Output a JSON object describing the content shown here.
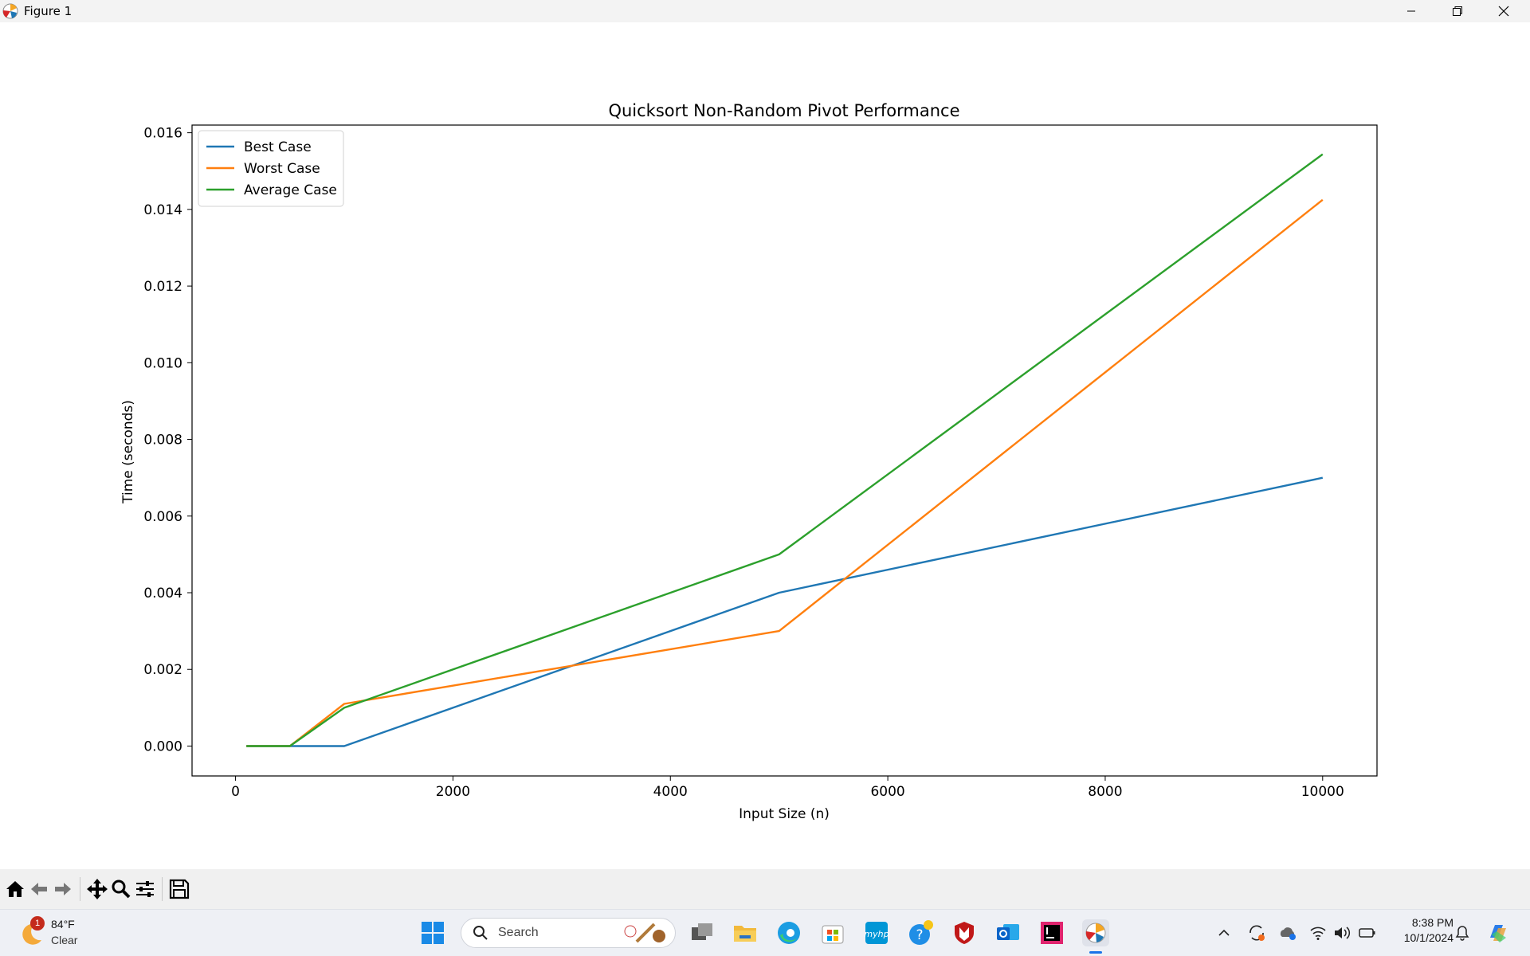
{
  "window": {
    "title": "Figure 1"
  },
  "chart_data": {
    "type": "line",
    "title": "Quicksort Non-Random Pivot Performance",
    "xlabel": "Input Size (n)",
    "ylabel": "Time (seconds)",
    "xlim": [
      -400,
      10500
    ],
    "ylim": [
      -0.00078,
      0.0162
    ],
    "xticks": [
      0,
      2000,
      4000,
      6000,
      8000,
      10000
    ],
    "xtick_labels": [
      "0",
      "2000",
      "4000",
      "6000",
      "8000",
      "10000"
    ],
    "yticks": [
      0,
      0.002,
      0.004,
      0.006,
      0.008,
      0.01,
      0.012,
      0.014,
      0.016
    ],
    "ytick_labels": [
      "0.000",
      "0.002",
      "0.004",
      "0.006",
      "0.008",
      "0.010",
      "0.012",
      "0.014",
      "0.016"
    ],
    "x": [
      100,
      500,
      1000,
      5000,
      10000
    ],
    "series": [
      {
        "name": "Best Case",
        "color": "#1f77b4",
        "values": [
          0.0,
          0.0,
          0.0,
          0.004,
          0.007
        ]
      },
      {
        "name": "Worst Case",
        "color": "#ff7f0e",
        "values": [
          0.0,
          0.0,
          0.0011,
          0.003,
          0.01425
        ]
      },
      {
        "name": "Average Case",
        "color": "#2ca02c",
        "values": [
          0.0,
          0.0,
          0.001,
          0.005,
          0.01544
        ]
      }
    ],
    "legend": "top-left",
    "grid": false
  },
  "toolbar": {
    "icons": [
      "home-icon",
      "back-arrow-icon",
      "forward-arrow-icon",
      "pan-icon",
      "zoom-icon",
      "configure-subplots-icon",
      "save-icon"
    ]
  },
  "taskbar": {
    "weather": {
      "temp": "84°F",
      "condition": "Clear",
      "badge": "1"
    },
    "search_placeholder": "Search",
    "time": "8:38 PM",
    "date": "10/1/2024"
  }
}
